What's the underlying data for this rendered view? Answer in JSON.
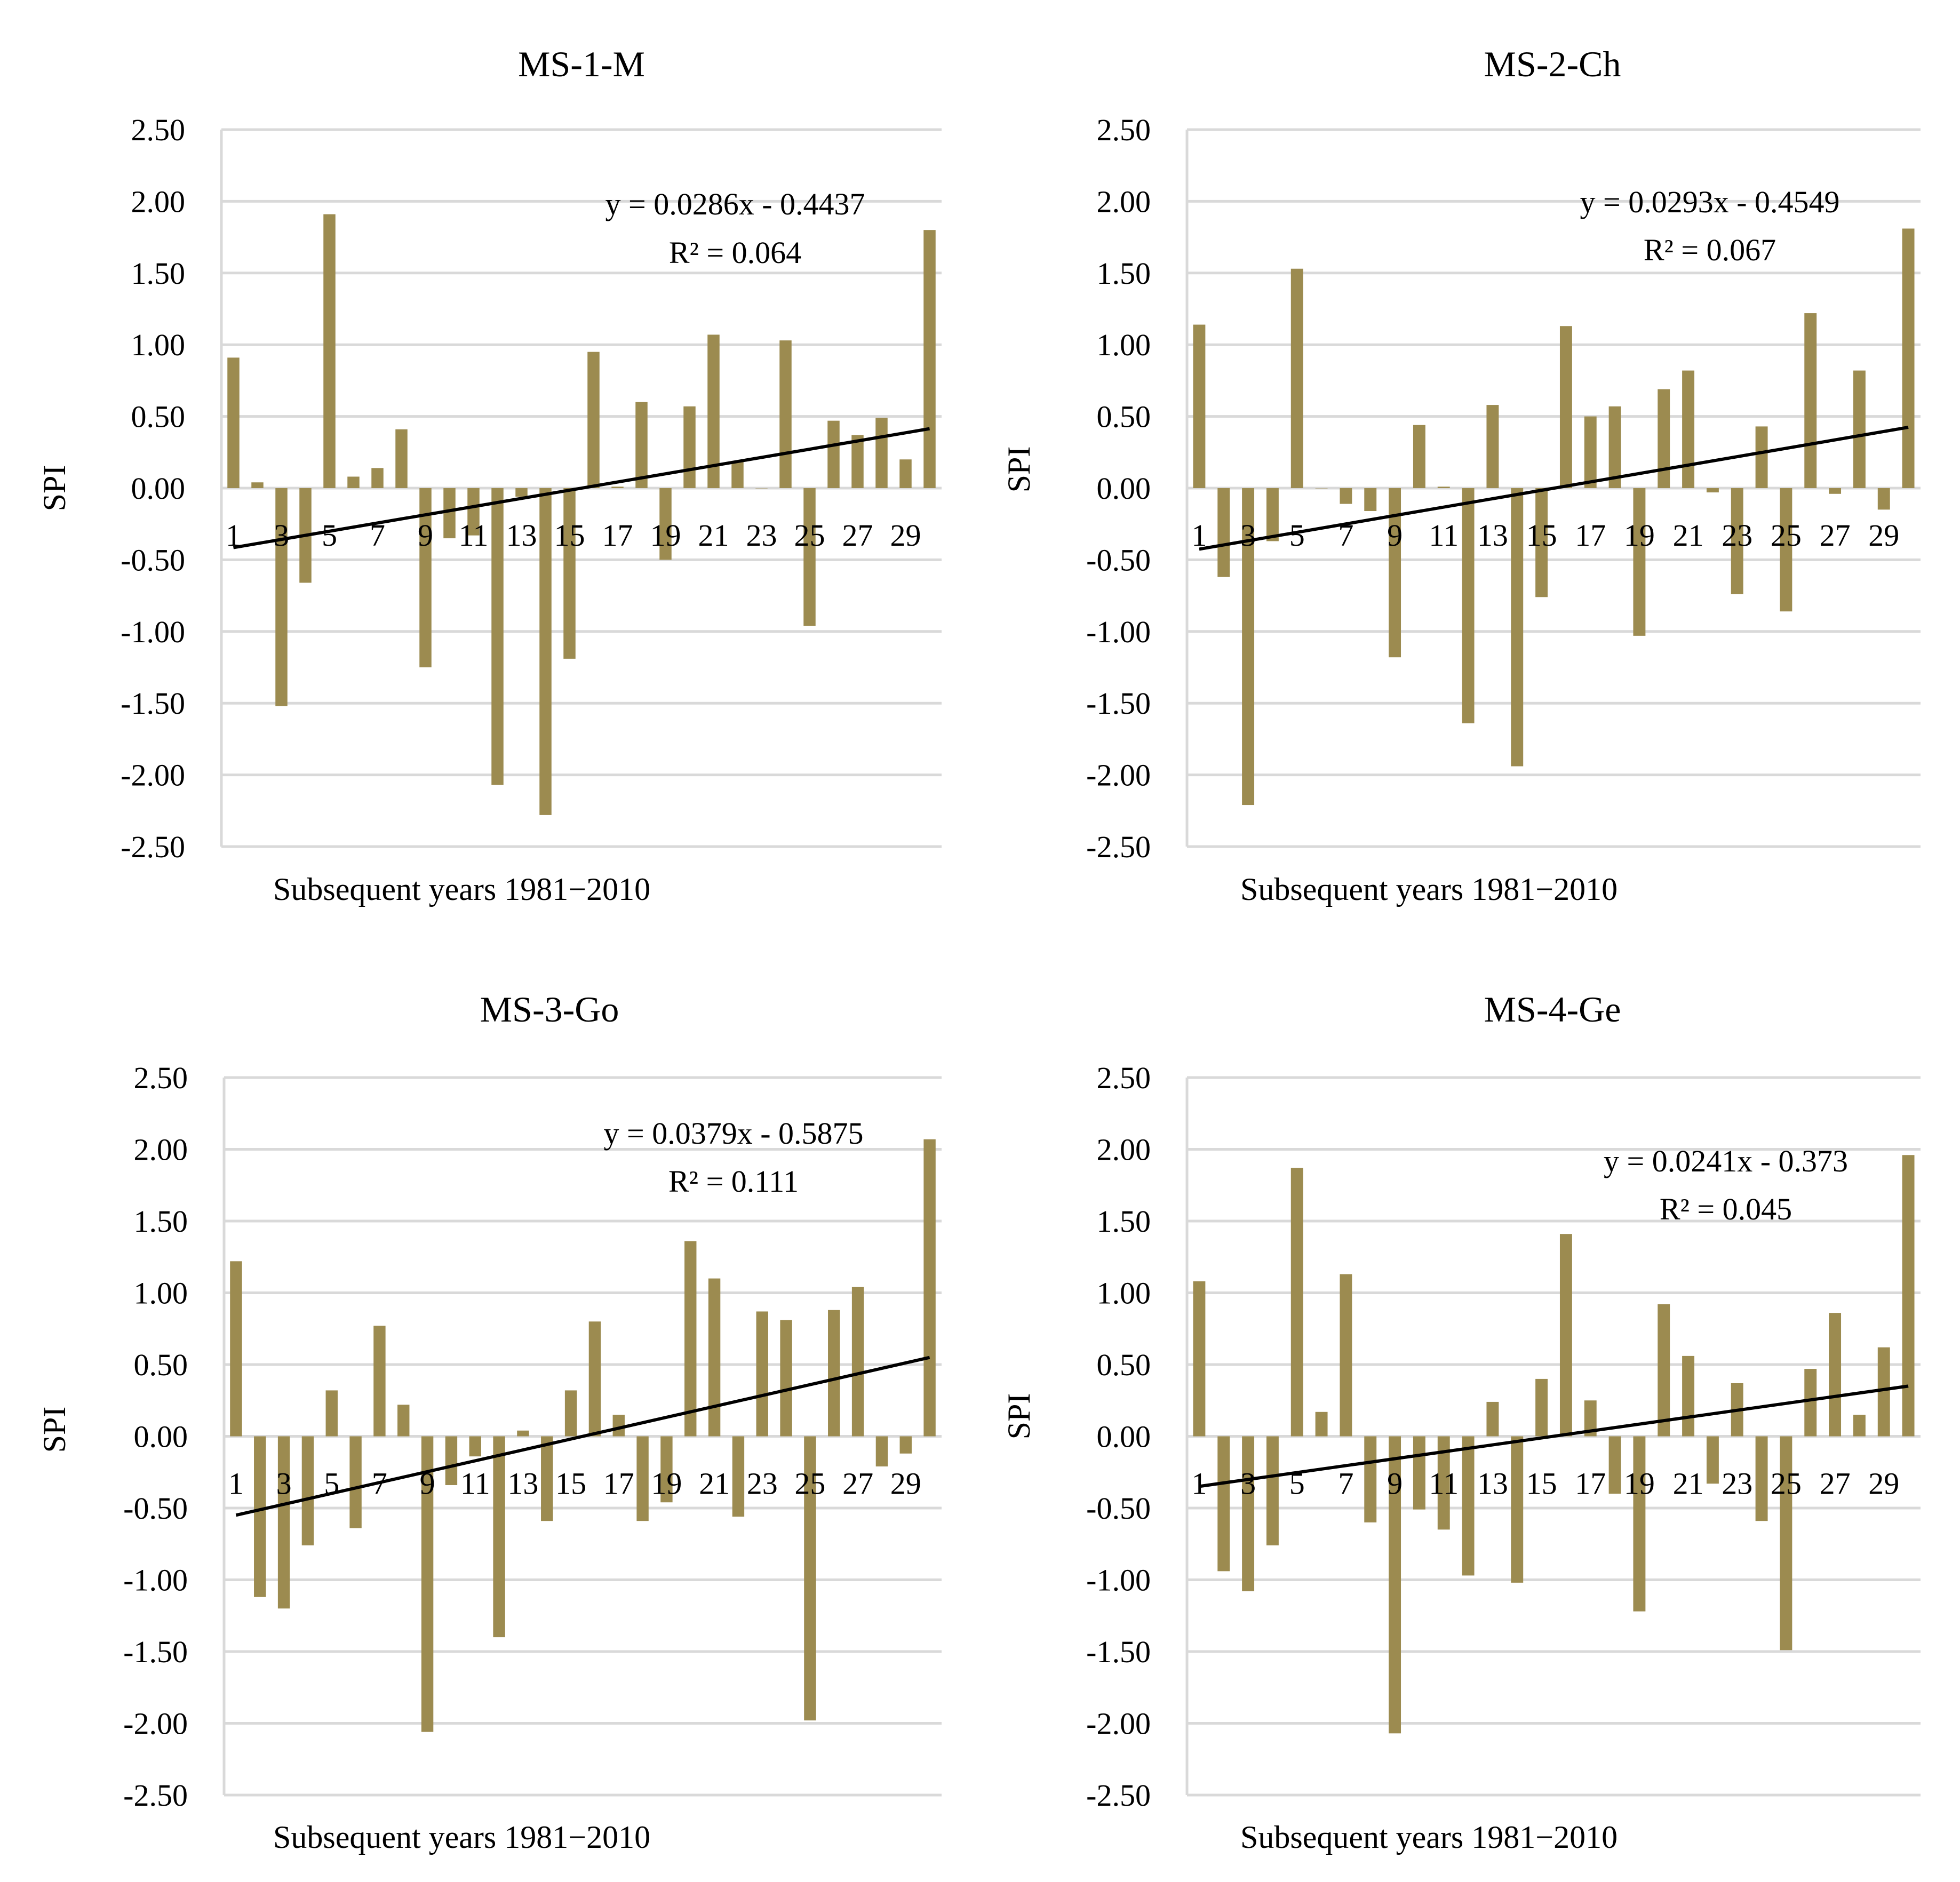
{
  "figure": {
    "bar_color": "#9c8b50",
    "trend_color": "#000000",
    "grid_color": "#d9d9d9"
  },
  "chart_data": [
    {
      "type": "bar",
      "title": "MS-1-M",
      "xlabel": "Subsequent years 1981−2010",
      "ylabel": "SPI",
      "ylim": [
        -2.5,
        2.5
      ],
      "yticks": [
        "2.50",
        "2.00",
        "1.50",
        "1.00",
        "0.50",
        "0.00",
        "-0.50",
        "-1.00",
        "-1.50",
        "-2.00",
        "-2.50"
      ],
      "categories": [
        "1",
        "2",
        "3",
        "4",
        "5",
        "6",
        "7",
        "8",
        "9",
        "10",
        "11",
        "12",
        "13",
        "14",
        "15",
        "16",
        "17",
        "18",
        "19",
        "20",
        "21",
        "22",
        "23",
        "24",
        "25",
        "26",
        "27",
        "28",
        "29",
        "30"
      ],
      "xtick_labels": [
        "1",
        "3",
        "5",
        "7",
        "9",
        "11",
        "13",
        "15",
        "17",
        "19",
        "21",
        "23",
        "25",
        "27",
        "29"
      ],
      "values": [
        0.91,
        0.04,
        -1.52,
        -0.66,
        1.91,
        0.08,
        0.14,
        0.41,
        -1.25,
        -0.35,
        -0.33,
        -2.07,
        -0.06,
        -2.28,
        -1.19,
        0.95,
        0.01,
        0.6,
        -0.5,
        0.57,
        1.07,
        0.19,
        0.0,
        1.03,
        -0.96,
        0.47,
        0.37,
        0.49,
        0.2,
        1.8
      ],
      "trendline": {
        "slope": 0.0286,
        "intercept": -0.4437
      },
      "equation": "y = 0.0286x - 0.4437",
      "r2": "R² = 0.064"
    },
    {
      "type": "bar",
      "title": "MS-2-Ch",
      "xlabel": "Subsequent years 1981−2010",
      "ylabel": "SPI",
      "ylim": [
        -2.5,
        2.5
      ],
      "yticks": [
        "2.50",
        "2.00",
        "1.50",
        "1.00",
        "0.50",
        "0.00",
        "-0.50",
        "-1.00",
        "-1.50",
        "-2.00",
        "-2.50"
      ],
      "categories": [
        "1",
        "2",
        "3",
        "4",
        "5",
        "6",
        "7",
        "8",
        "9",
        "10",
        "11",
        "12",
        "13",
        "14",
        "15",
        "16",
        "17",
        "18",
        "19",
        "20",
        "21",
        "22",
        "23",
        "24",
        "25",
        "26",
        "27",
        "28",
        "29",
        "30"
      ],
      "xtick_labels": [
        "1",
        "3",
        "5",
        "7",
        "9",
        "11",
        "13",
        "15",
        "17",
        "19",
        "21",
        "23",
        "25",
        "27",
        "29"
      ],
      "values": [
        1.14,
        -0.62,
        -2.21,
        -0.37,
        1.53,
        0.0,
        -0.11,
        -0.16,
        -1.18,
        0.44,
        0.01,
        -1.64,
        0.58,
        -1.94,
        -0.76,
        1.13,
        0.5,
        0.57,
        -1.03,
        0.69,
        0.82,
        -0.03,
        -0.74,
        0.43,
        -0.86,
        1.22,
        -0.04,
        0.82,
        -0.15,
        1.81
      ],
      "trendline": {
        "slope": 0.0293,
        "intercept": -0.4549
      },
      "equation": "y = 0.0293x - 0.4549",
      "r2": "R² = 0.067"
    },
    {
      "type": "bar",
      "title": "MS-3-Go",
      "xlabel": "Subsequent years 1981−2010",
      "ylabel": "SPI",
      "ylim": [
        -2.5,
        2.5
      ],
      "yticks": [
        "2.50",
        "2.00",
        "1.50",
        "1.00",
        "0.50",
        "0.00",
        "-0.50",
        "-1.00",
        "-1.50",
        "-2.00",
        "-2.50"
      ],
      "categories": [
        "1",
        "2",
        "3",
        "4",
        "5",
        "6",
        "7",
        "8",
        "9",
        "10",
        "11",
        "12",
        "13",
        "14",
        "15",
        "16",
        "17",
        "18",
        "19",
        "20",
        "21",
        "22",
        "23",
        "24",
        "25",
        "26",
        "27",
        "28",
        "29",
        "30"
      ],
      "xtick_labels": [
        "1",
        "3",
        "5",
        "7",
        "9",
        "11",
        "13",
        "15",
        "17",
        "19",
        "21",
        "23",
        "25",
        "27",
        "29"
      ],
      "values": [
        1.22,
        -1.12,
        -1.2,
        -0.76,
        0.32,
        -0.64,
        0.77,
        0.22,
        -2.06,
        -0.34,
        -0.14,
        -1.4,
        0.04,
        -0.59,
        0.32,
        0.8,
        0.15,
        -0.59,
        -0.46,
        1.36,
        1.1,
        -0.56,
        0.87,
        0.81,
        -1.98,
        0.88,
        1.04,
        -0.21,
        -0.12,
        2.07
      ],
      "trendline": {
        "slope": 0.0379,
        "intercept": -0.5875
      },
      "equation": "y = 0.0379x - 0.5875",
      "r2": "R² = 0.111"
    },
    {
      "type": "bar",
      "title": "MS-4-Ge",
      "xlabel": "Subsequent years 1981−2010",
      "ylabel": "SPI",
      "ylim": [
        -2.5,
        2.5
      ],
      "yticks": [
        "2.50",
        "2.00",
        "1.50",
        "1.00",
        "0.50",
        "0.00",
        "-0.50",
        "-1.00",
        "-1.50",
        "-2.00",
        "-2.50"
      ],
      "categories": [
        "1",
        "2",
        "3",
        "4",
        "5",
        "6",
        "7",
        "8",
        "9",
        "10",
        "11",
        "12",
        "13",
        "14",
        "15",
        "16",
        "17",
        "18",
        "19",
        "20",
        "21",
        "22",
        "23",
        "24",
        "25",
        "26",
        "27",
        "28",
        "29",
        "30"
      ],
      "xtick_labels": [
        "1",
        "3",
        "5",
        "7",
        "9",
        "11",
        "13",
        "15",
        "17",
        "19",
        "21",
        "23",
        "25",
        "27",
        "29"
      ],
      "values": [
        1.08,
        -0.94,
        -1.08,
        -0.76,
        1.87,
        0.17,
        1.13,
        -0.6,
        -2.07,
        -0.51,
        -0.65,
        -0.97,
        0.24,
        -1.02,
        0.4,
        1.41,
        0.25,
        -0.4,
        -1.22,
        0.92,
        0.56,
        -0.33,
        0.37,
        -0.59,
        -1.49,
        0.47,
        0.86,
        0.15,
        0.62,
        1.96
      ],
      "trendline": {
        "slope": 0.0241,
        "intercept": -0.373
      },
      "equation": "y = 0.0241x - 0.373",
      "r2": "R² = 0.045"
    }
  ]
}
